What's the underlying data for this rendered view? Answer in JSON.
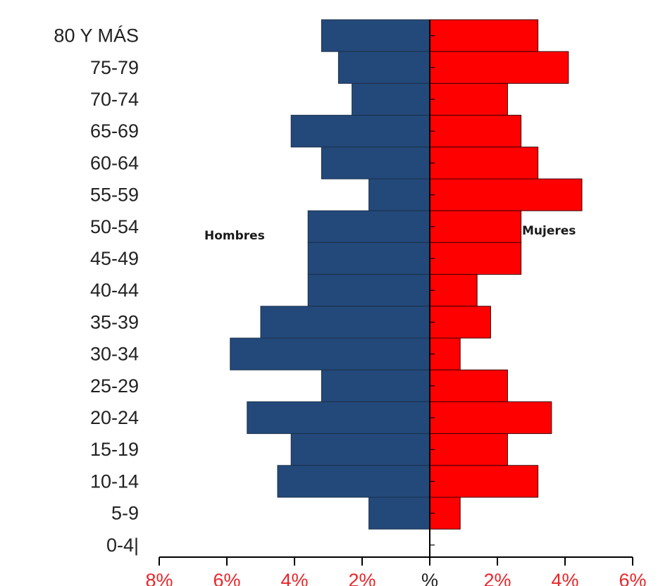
{
  "chart_data": {
    "type": "bar",
    "orientation": "horizontal",
    "categories": [
      "80 Y MÁS",
      "75-79",
      "70-74",
      "65-69",
      "60-64",
      "55-59",
      "50-54",
      "45-49",
      "40-44",
      "35-39",
      "30-34",
      "25-29",
      "20-24",
      "15-19",
      "10-14",
      "5-9",
      "0-4|"
    ],
    "series": [
      {
        "name": "Hombres",
        "color": "#23497a",
        "values": [
          3.2,
          2.7,
          2.3,
          4.1,
          3.2,
          1.8,
          3.6,
          3.6,
          3.6,
          5.0,
          5.9,
          3.2,
          5.4,
          4.1,
          4.5,
          1.8,
          0
        ]
      },
      {
        "name": "Mujeres",
        "color": "#ff0000",
        "values": [
          3.2,
          4.1,
          2.3,
          2.7,
          3.2,
          4.5,
          2.7,
          2.7,
          1.4,
          1.8,
          0.9,
          2.3,
          3.6,
          2.3,
          3.2,
          0.9,
          0
        ]
      }
    ],
    "xlim": [
      -8,
      6
    ],
    "xticks": [
      -8,
      -6,
      -4,
      -2,
      0,
      2,
      4,
      6
    ],
    "xtick_labels": [
      "8%",
      "6%",
      "4%",
      "2%",
      "%",
      "2%",
      "4%",
      "6%"
    ],
    "tick_label_color": "#e8262a",
    "xlabel": "",
    "ylabel": "",
    "grid": false
  }
}
